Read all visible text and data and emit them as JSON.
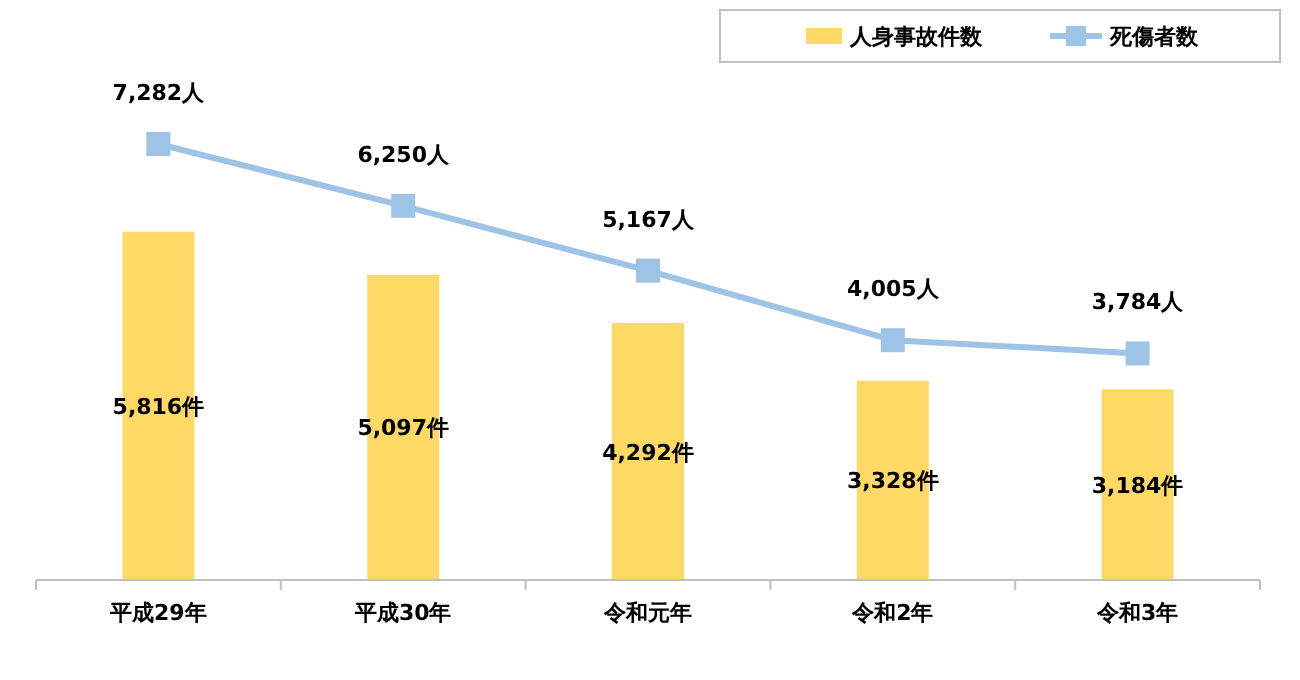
{
  "chart_data": {
    "type": "bar",
    "categories": [
      "平成29年",
      "平成30年",
      "令和元年",
      "令和2年",
      "令和3年"
    ],
    "series": [
      {
        "name": "人身事故件数",
        "color": "#ffd966",
        "values": [
          5816,
          5097,
          4292,
          3328,
          3184
        ],
        "value_labels": [
          "5,816件",
          "5,097件",
          "4,292件",
          "3,328件",
          "3,184件"
        ]
      },
      {
        "name": "死傷者数",
        "type": "line",
        "color": "#9dc3e6",
        "marker": "square",
        "values": [
          7282,
          6250,
          5167,
          4005,
          3784
        ],
        "value_labels": [
          "7,282人",
          "6,250人",
          "5,167人",
          "4,005人",
          "3,784人"
        ]
      }
    ],
    "legend": "top right",
    "grid": false
  }
}
